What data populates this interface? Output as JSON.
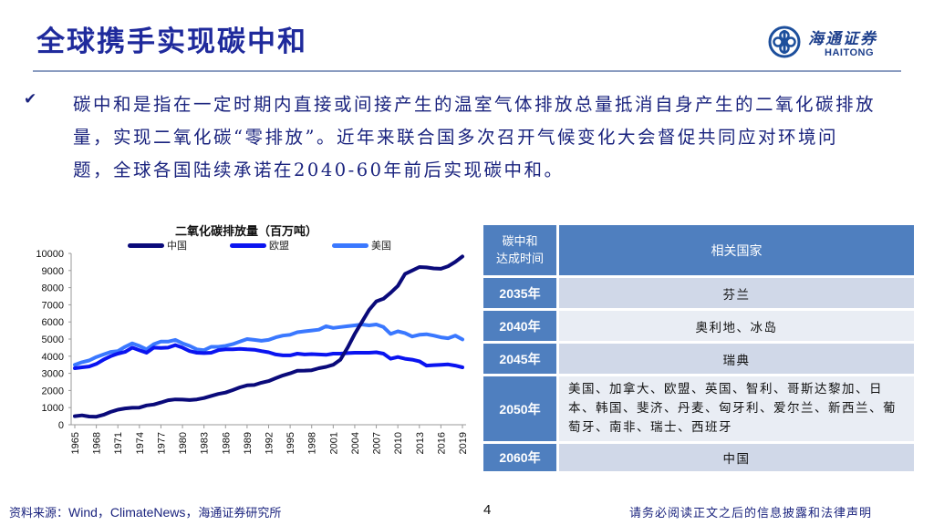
{
  "header": {
    "title": "全球携手实现碳中和",
    "logo_cn": "海通证券",
    "logo_en": "HAITONG"
  },
  "bullet": {
    "icon": "check-icon",
    "text": "碳中和是指在一定时期内直接或间接产生的温室气体排放总量抵消自身产生的二氧化碳排放量，实现二氧化碳“零排放”。近年来联合国多次召开气候变化大会督促共同应对环境问题，全球各国陆续承诺在2040-60年前后实现碳中和。"
  },
  "chart_data": {
    "type": "line",
    "title": "二氧化碳排放量（百万吨）",
    "xlabel": "",
    "ylabel": "",
    "ylim": [
      0,
      10000
    ],
    "yticks": [
      0,
      1000,
      2000,
      3000,
      4000,
      5000,
      6000,
      7000,
      8000,
      9000,
      10000
    ],
    "xticks": [
      "1965",
      "1968",
      "1971",
      "1974",
      "1977",
      "1980",
      "1983",
      "1986",
      "1989",
      "1992",
      "1995",
      "1998",
      "2001",
      "2004",
      "2007",
      "2010",
      "2013",
      "2016",
      "2019"
    ],
    "legend_position": "top",
    "grid": false,
    "x": [
      1965,
      1966,
      1967,
      1968,
      1969,
      1970,
      1971,
      1972,
      1973,
      1974,
      1975,
      1976,
      1977,
      1978,
      1979,
      1980,
      1981,
      1982,
      1983,
      1984,
      1985,
      1986,
      1987,
      1988,
      1989,
      1990,
      1991,
      1992,
      1993,
      1994,
      1995,
      1996,
      1997,
      1998,
      1999,
      2000,
      2001,
      2002,
      2003,
      2004,
      2005,
      2006,
      2007,
      2008,
      2009,
      2010,
      2011,
      2012,
      2013,
      2014,
      2015,
      2016,
      2017,
      2018,
      2019
    ],
    "series": [
      {
        "name": "中国",
        "color": "#0a0a7a",
        "values": [
          500,
          550,
          480,
          470,
          580,
          750,
          880,
          950,
          990,
          1000,
          1130,
          1180,
          1300,
          1430,
          1480,
          1470,
          1440,
          1480,
          1560,
          1680,
          1800,
          1880,
          2020,
          2180,
          2300,
          2320,
          2450,
          2550,
          2720,
          2880,
          3000,
          3150,
          3160,
          3180,
          3300,
          3380,
          3500,
          3800,
          4500,
          5300,
          6000,
          6700,
          7200,
          7350,
          7700,
          8100,
          8800,
          9000,
          9200,
          9180,
          9120,
          9100,
          9250,
          9500,
          9820
        ]
      },
      {
        "name": "欧盟",
        "color": "#0a14f0",
        "values": [
          3300,
          3350,
          3400,
          3550,
          3800,
          4000,
          4150,
          4250,
          4500,
          4350,
          4200,
          4500,
          4480,
          4500,
          4650,
          4500,
          4300,
          4200,
          4180,
          4200,
          4350,
          4400,
          4400,
          4430,
          4400,
          4380,
          4300,
          4230,
          4100,
          4050,
          4050,
          4150,
          4100,
          4120,
          4100,
          4080,
          4150,
          4150,
          4180,
          4200,
          4200,
          4200,
          4230,
          4150,
          3850,
          3950,
          3850,
          3800,
          3700,
          3450,
          3480,
          3500,
          3520,
          3450,
          3350
        ]
      },
      {
        "name": "美国",
        "color": "#3a78ff",
        "values": [
          3500,
          3650,
          3750,
          3950,
          4100,
          4250,
          4300,
          4550,
          4750,
          4600,
          4400,
          4700,
          4850,
          4850,
          4950,
          4750,
          4600,
          4400,
          4350,
          4550,
          4550,
          4600,
          4700,
          4850,
          5000,
          4950,
          4900,
          4950,
          5100,
          5200,
          5250,
          5400,
          5450,
          5500,
          5550,
          5750,
          5650,
          5700,
          5750,
          5800,
          5850,
          5800,
          5850,
          5700,
          5300,
          5450,
          5350,
          5150,
          5250,
          5280,
          5200,
          5100,
          5050,
          5200,
          4980
        ]
      }
    ]
  },
  "table": {
    "header": {
      "time": "碳中和\n达成时间",
      "time_line1": "碳中和",
      "time_line2": "达成时间",
      "countries": "相关国家"
    },
    "rows": [
      {
        "year": "2035年",
        "countries": "芬兰"
      },
      {
        "year": "2040年",
        "countries": "奥利地、冰岛"
      },
      {
        "year": "2045年",
        "countries": "瑞典"
      },
      {
        "year": "2050年",
        "countries": "美国、加拿大、欧盟、英国、智利、哥斯达黎加、日本、韩国、斐济、丹麦、匈牙利、爱尔兰、新西兰、葡萄牙、南非、瑞士、西班牙"
      },
      {
        "year": "2060年",
        "countries": "中国"
      }
    ]
  },
  "footer": {
    "source_label": "资料来源：",
    "source_latin": "Wind，ClimateNews，",
    "source_cn": "海通证券研究所",
    "page_number": "4",
    "disclaimer": "请务必阅读正文之后的信息披露和法律声明"
  },
  "colors": {
    "title": "#1f2a9c",
    "rule": "#8a9cc0",
    "table_header": "#4f7fbf",
    "row_dark": "#d0d8e8",
    "row_light": "#e9edf4"
  }
}
